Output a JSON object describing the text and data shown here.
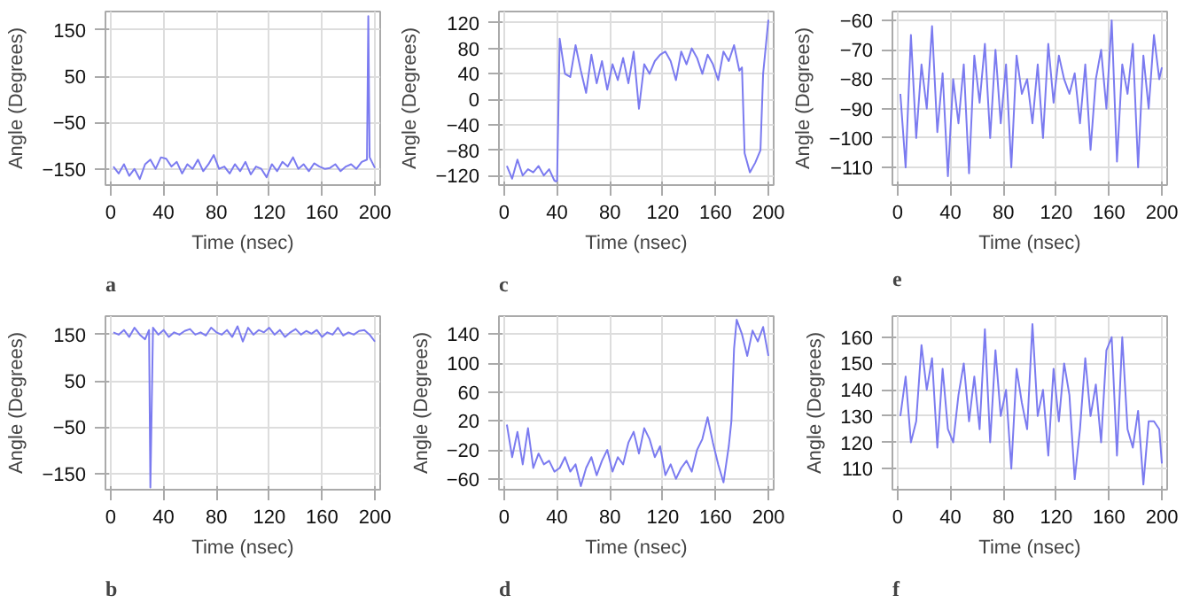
{
  "chart_data": [
    {
      "type": "line",
      "xlabel": "Time (nsec)",
      "ylabel": "Angle (Degrees)",
      "annotations": [
        "a"
      ],
      "color": "#7b7bf0",
      "grid": true,
      "xlim": [
        -4,
        204
      ],
      "ylim": [
        -185,
        190
      ],
      "xticks": [
        0,
        40,
        80,
        120,
        160,
        200
      ],
      "yticks": [
        -150,
        -50,
        50,
        150
      ],
      "x": [
        2,
        6,
        10,
        14,
        18,
        22,
        26,
        30,
        34,
        38,
        42,
        46,
        50,
        54,
        58,
        62,
        66,
        70,
        74,
        78,
        82,
        86,
        90,
        94,
        98,
        102,
        106,
        110,
        114,
        118,
        122,
        126,
        130,
        134,
        138,
        142,
        146,
        150,
        154,
        158,
        162,
        166,
        170,
        174,
        178,
        182,
        186,
        190,
        194,
        195,
        196,
        200
      ],
      "values": [
        -145,
        -160,
        -140,
        -165,
        -150,
        -172,
        -140,
        -130,
        -150,
        -125,
        -128,
        -145,
        -135,
        -160,
        -140,
        -150,
        -130,
        -155,
        -140,
        -120,
        -150,
        -145,
        -160,
        -140,
        -155,
        -135,
        -162,
        -145,
        -150,
        -168,
        -140,
        -155,
        -135,
        -145,
        -125,
        -150,
        -140,
        -155,
        -138,
        -145,
        -150,
        -148,
        -140,
        -155,
        -145,
        -140,
        -150,
        -135,
        -130,
        180,
        -125,
        -148
      ]
    },
    {
      "type": "line",
      "xlabel": "Time (nsec)",
      "ylabel": "Angle (Degrees)",
      "annotations": [
        "c"
      ],
      "color": "#7b7bf0",
      "grid": true,
      "xlim": [
        -4,
        204
      ],
      "ylim": [
        -135,
        138
      ],
      "xticks": [
        0,
        40,
        80,
        120,
        160,
        200
      ],
      "yticks": [
        -120,
        -80,
        -40,
        0,
        40,
        80,
        120
      ],
      "x": [
        2,
        6,
        10,
        14,
        18,
        22,
        26,
        30,
        34,
        38,
        40,
        42,
        46,
        50,
        54,
        58,
        62,
        66,
        70,
        74,
        78,
        82,
        86,
        90,
        94,
        98,
        102,
        106,
        110,
        114,
        118,
        122,
        126,
        130,
        134,
        138,
        142,
        146,
        150,
        154,
        158,
        162,
        166,
        170,
        174,
        178,
        180,
        182,
        186,
        190,
        194,
        196,
        200
      ],
      "values": [
        -105,
        -125,
        -95,
        -120,
        -110,
        -115,
        -105,
        -120,
        -110,
        -128,
        -130,
        95,
        40,
        35,
        85,
        45,
        10,
        70,
        25,
        60,
        15,
        55,
        30,
        65,
        25,
        75,
        -15,
        55,
        40,
        60,
        70,
        75,
        60,
        30,
        75,
        55,
        80,
        65,
        40,
        70,
        55,
        30,
        75,
        60,
        85,
        45,
        50,
        -85,
        -115,
        -100,
        -80,
        40,
        125
      ]
    },
    {
      "type": "line",
      "xlabel": "Time (nsec)",
      "ylabel": "Angle (Degrees)",
      "annotations": [
        "e"
      ],
      "color": "#7b7bf0",
      "grid": true,
      "xlim": [
        -4,
        204
      ],
      "ylim": [
        -116,
        -57
      ],
      "xticks": [
        0,
        40,
        80,
        120,
        160,
        200
      ],
      "yticks": [
        -110,
        -100,
        -90,
        -80,
        -70,
        -60
      ],
      "x": [
        2,
        6,
        10,
        14,
        18,
        22,
        26,
        30,
        34,
        38,
        42,
        46,
        50,
        54,
        58,
        62,
        66,
        70,
        74,
        78,
        82,
        86,
        90,
        94,
        98,
        102,
        106,
        110,
        114,
        118,
        122,
        126,
        130,
        134,
        138,
        142,
        146,
        150,
        154,
        158,
        162,
        166,
        170,
        174,
        178,
        182,
        186,
        190,
        194,
        198,
        200
      ],
      "values": [
        -85,
        -110,
        -65,
        -100,
        -75,
        -90,
        -62,
        -98,
        -78,
        -113,
        -80,
        -95,
        -75,
        -112,
        -72,
        -88,
        -68,
        -100,
        -70,
        -95,
        -75,
        -110,
        -72,
        -85,
        -80,
        -95,
        -75,
        -100,
        -68,
        -88,
        -72,
        -80,
        -85,
        -78,
        -95,
        -75,
        -104,
        -80,
        -70,
        -90,
        -60,
        -108,
        -75,
        -85,
        -68,
        -110,
        -72,
        -90,
        -65,
        -80,
        -76
      ]
    },
    {
      "type": "line",
      "xlabel": "Time (nsec)",
      "ylabel": "Angle (Degrees)",
      "annotations": [
        "b"
      ],
      "color": "#7b7bf0",
      "grid": true,
      "xlim": [
        -4,
        204
      ],
      "ylim": [
        -185,
        190
      ],
      "xticks": [
        0,
        40,
        80,
        120,
        160,
        200
      ],
      "yticks": [
        -150,
        -50,
        50,
        150
      ],
      "x": [
        2,
        6,
        10,
        14,
        18,
        22,
        26,
        29,
        30,
        32,
        36,
        40,
        44,
        48,
        52,
        56,
        60,
        64,
        68,
        72,
        76,
        80,
        84,
        88,
        92,
        96,
        100,
        104,
        108,
        112,
        116,
        120,
        124,
        128,
        132,
        136,
        140,
        144,
        148,
        152,
        156,
        160,
        164,
        168,
        172,
        176,
        180,
        184,
        188,
        192,
        196,
        200
      ],
      "values": [
        155,
        150,
        160,
        145,
        165,
        150,
        140,
        160,
        -180,
        165,
        150,
        160,
        145,
        155,
        150,
        158,
        162,
        150,
        155,
        148,
        165,
        155,
        150,
        160,
        145,
        168,
        135,
        165,
        150,
        160,
        155,
        165,
        150,
        160,
        145,
        155,
        162,
        150,
        158,
        152,
        160,
        145,
        155,
        150,
        165,
        148,
        155,
        150,
        158,
        160,
        150,
        135
      ]
    },
    {
      "type": "line",
      "xlabel": "Time (nsec)",
      "ylabel": "Angle (Degrees)",
      "annotations": [
        "d"
      ],
      "color": "#7b7bf0",
      "grid": true,
      "xlim": [
        -4,
        204
      ],
      "ylim": [
        -75,
        165
      ],
      "xticks": [
        0,
        40,
        80,
        120,
        160,
        200
      ],
      "yticks": [
        -60,
        -20,
        20,
        60,
        100,
        140
      ],
      "x": [
        2,
        6,
        10,
        14,
        18,
        22,
        26,
        30,
        34,
        38,
        42,
        46,
        50,
        54,
        58,
        62,
        66,
        70,
        74,
        78,
        82,
        86,
        90,
        94,
        98,
        102,
        106,
        110,
        114,
        118,
        122,
        126,
        130,
        134,
        138,
        142,
        146,
        150,
        154,
        158,
        162,
        166,
        170,
        172,
        174,
        176,
        180,
        184,
        188,
        192,
        196,
        200
      ],
      "values": [
        15,
        -30,
        5,
        -40,
        10,
        -45,
        -25,
        -40,
        -35,
        -50,
        -45,
        -30,
        -50,
        -40,
        -70,
        -45,
        -30,
        -55,
        -35,
        -20,
        -50,
        -30,
        -40,
        -10,
        5,
        -25,
        10,
        -5,
        -30,
        -15,
        -55,
        -40,
        -60,
        -45,
        -35,
        -50,
        -20,
        -5,
        25,
        -10,
        -40,
        -65,
        -15,
        20,
        120,
        160,
        140,
        110,
        145,
        130,
        150,
        110
      ]
    },
    {
      "type": "line",
      "xlabel": "Time (nsec)",
      "ylabel": "Angle (Degrees)",
      "annotations": [
        "f"
      ],
      "color": "#7b7bf0",
      "grid": true,
      "xlim": [
        -4,
        204
      ],
      "ylim": [
        102,
        168
      ],
      "xticks": [
        0,
        40,
        80,
        120,
        160,
        200
      ],
      "yticks": [
        110,
        120,
        130,
        140,
        150,
        160
      ],
      "x": [
        2,
        6,
        10,
        14,
        18,
        22,
        26,
        30,
        34,
        38,
        42,
        46,
        50,
        54,
        58,
        62,
        66,
        70,
        74,
        78,
        82,
        86,
        90,
        94,
        98,
        102,
        106,
        110,
        114,
        118,
        122,
        126,
        130,
        134,
        138,
        142,
        146,
        150,
        154,
        158,
        162,
        166,
        170,
        174,
        178,
        182,
        186,
        190,
        194,
        198,
        200
      ],
      "values": [
        130,
        145,
        120,
        128,
        157,
        140,
        152,
        118,
        148,
        125,
        120,
        138,
        150,
        128,
        145,
        125,
        163,
        120,
        155,
        130,
        140,
        110,
        148,
        135,
        125,
        165,
        130,
        140,
        115,
        148,
        128,
        150,
        138,
        106,
        125,
        152,
        130,
        142,
        120,
        155,
        160,
        115,
        160,
        125,
        118,
        132,
        104,
        128,
        128,
        125,
        112
      ]
    }
  ]
}
